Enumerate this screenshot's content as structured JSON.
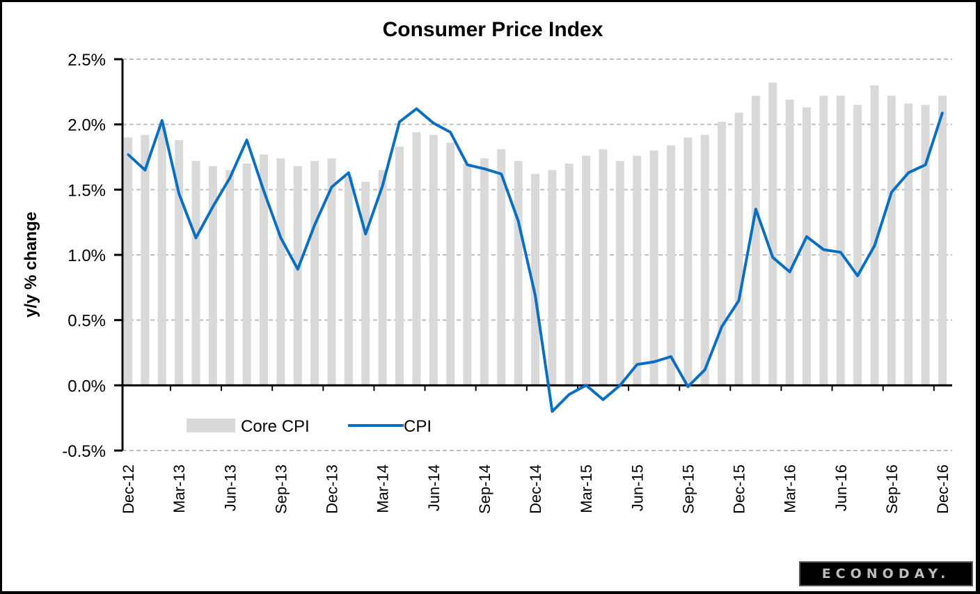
{
  "chart_data": {
    "type": "bar+line",
    "title": "Consumer Price Index",
    "ylabel": "y/y % change",
    "xlabel": "",
    "ylim": [
      -0.5,
      2.5
    ],
    "yticks": [
      2.5,
      2.0,
      1.5,
      1.0,
      0.5,
      0.0,
      -0.5
    ],
    "ytick_labels": [
      "2.5%",
      "2.0%",
      "1.5%",
      "1.0%",
      "0.5%",
      "0.0%",
      "-0.5%"
    ],
    "grid": true,
    "legend_position": "bottom-left",
    "x": [
      "Dec-12",
      "Jan-13",
      "Feb-13",
      "Mar-13",
      "Apr-13",
      "May-13",
      "Jun-13",
      "Jul-13",
      "Aug-13",
      "Sep-13",
      "Oct-13",
      "Nov-13",
      "Dec-13",
      "Jan-14",
      "Feb-14",
      "Mar-14",
      "Apr-14",
      "May-14",
      "Jun-14",
      "Jul-14",
      "Aug-14",
      "Sep-14",
      "Oct-14",
      "Nov-14",
      "Dec-14",
      "Jan-15",
      "Feb-15",
      "Mar-15",
      "Apr-15",
      "May-15",
      "Jun-15",
      "Jul-15",
      "Aug-15",
      "Sep-15",
      "Oct-15",
      "Nov-15",
      "Dec-15",
      "Jan-16",
      "Feb-16",
      "Mar-16",
      "Apr-16",
      "May-16",
      "Jun-16",
      "Jul-16",
      "Aug-16",
      "Sep-16",
      "Oct-16",
      "Nov-16",
      "Dec-16"
    ],
    "xtick_labels": [
      "Dec-12",
      "Mar-13",
      "Jun-13",
      "Sep-13",
      "Dec-13",
      "Mar-14",
      "Jun-14",
      "Sep-14",
      "Dec-14",
      "Mar-15",
      "Jun-15",
      "Sep-15",
      "Dec-15",
      "Mar-16",
      "Jun-16",
      "Sep-16",
      "Dec-16"
    ],
    "series": [
      {
        "name": "Core CPI",
        "kind": "bar",
        "color": "#d9d9d9",
        "values": [
          1.9,
          1.92,
          1.98,
          1.88,
          1.72,
          1.68,
          1.65,
          1.7,
          1.77,
          1.74,
          1.68,
          1.72,
          1.74,
          1.6,
          1.56,
          1.65,
          1.83,
          1.94,
          1.92,
          1.86,
          1.7,
          1.74,
          1.81,
          1.72,
          1.62,
          1.65,
          1.7,
          1.76,
          1.81,
          1.72,
          1.76,
          1.8,
          1.84,
          1.9,
          1.92,
          2.02,
          2.09,
          2.22,
          2.32,
          2.19,
          2.13,
          2.22,
          2.22,
          2.15,
          2.3,
          2.22,
          2.16,
          2.15,
          2.22
        ]
      },
      {
        "name": "CPI",
        "kind": "line",
        "color": "#0a6fc2",
        "values": [
          1.77,
          1.65,
          2.03,
          1.47,
          1.13,
          1.37,
          1.59,
          1.88,
          1.49,
          1.13,
          0.89,
          1.23,
          1.52,
          1.63,
          1.16,
          1.53,
          2.02,
          2.12,
          2.01,
          1.94,
          1.69,
          1.66,
          1.62,
          1.26,
          0.69,
          -0.2,
          -0.07,
          0.0,
          -0.11,
          0.0,
          0.16,
          0.18,
          0.22,
          -0.01,
          0.12,
          0.45,
          0.65,
          1.35,
          0.98,
          0.87,
          1.14,
          1.04,
          1.02,
          0.84,
          1.07,
          1.48,
          1.63,
          1.69,
          2.09
        ]
      }
    ]
  },
  "legend": {
    "core_label": "Core CPI",
    "cpi_label": "CPI"
  },
  "branding": {
    "logo_text": "ECONODAY."
  }
}
